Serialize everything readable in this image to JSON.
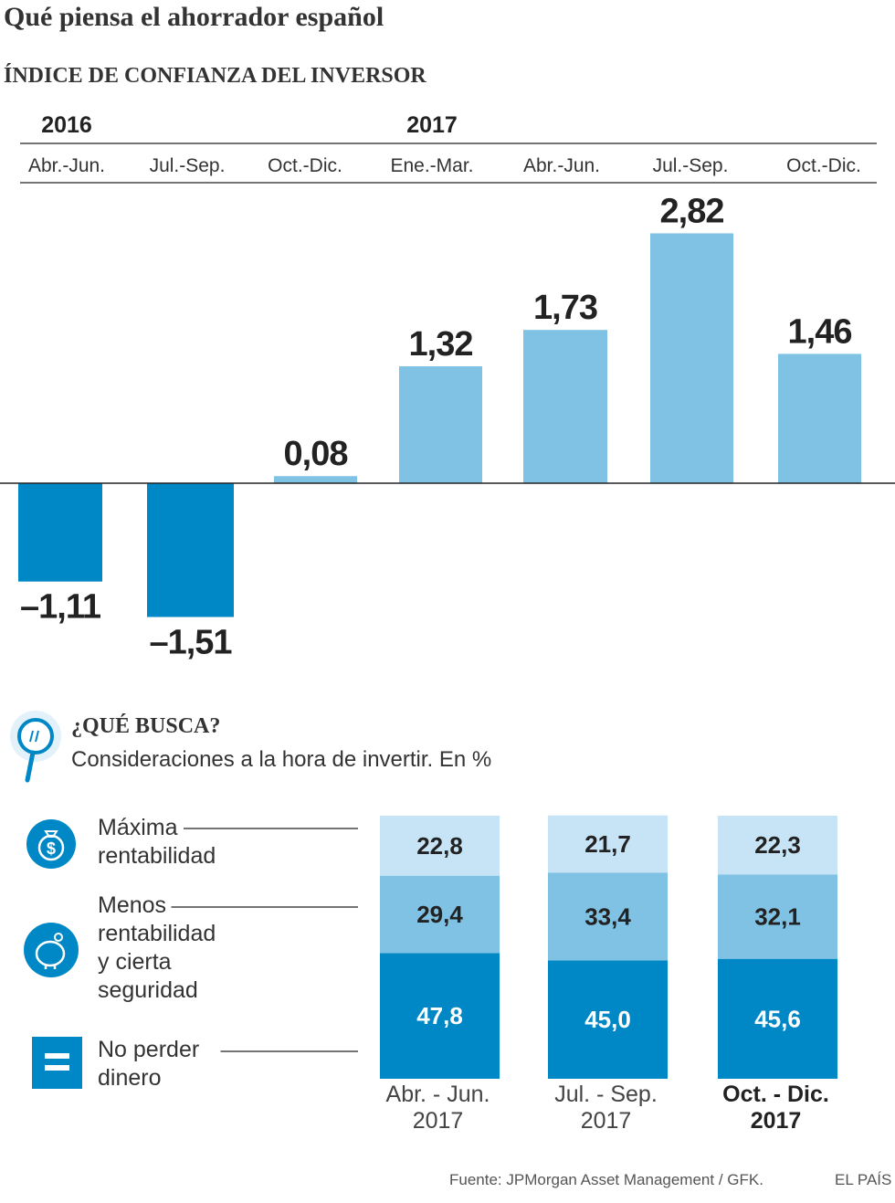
{
  "title": "Qué piensa el ahorrador español",
  "brand": "EL PAÍS",
  "source": "Fuente: JPMorgan Asset Management / GFK.",
  "colors": {
    "positive": "#80c2e4",
    "negative": "#0088c6",
    "light": "#c6e4f5",
    "mid": "#80c2e4",
    "dark": "#0088c6",
    "text": "#222222"
  },
  "chart_data": [
    {
      "type": "bar",
      "title": "ÍNDICE DE CONFIANZA DEL INVERSOR",
      "year_labels": [
        {
          "label": "2016",
          "category_index": 0
        },
        {
          "label": "2017",
          "category_index": 3
        }
      ],
      "categories": [
        "Abr.-Jun.",
        "Jul.-Sep.",
        "Oct.-Dic.",
        "Ene.-Mar.",
        "Abr.-Jun.",
        "Jul.-Sep.",
        "Oct.-Dic."
      ],
      "values": [
        -1.11,
        -1.51,
        0.08,
        1.32,
        1.73,
        2.82,
        1.46
      ],
      "value_labels": [
        "–1,11",
        "–1,51",
        "0,08",
        "1,32",
        "1,73",
        "2,82",
        "1,46"
      ],
      "ylim": [
        -2.0,
        3.3
      ],
      "grid": false
    },
    {
      "type": "bar",
      "stacked": true,
      "title": "¿QUÉ BUSCA?",
      "subtitle": "Consideraciones a la hora de invertir. En %",
      "icon": "magnifier-icon",
      "categories": [
        {
          "line1": "Abr. - Jun.",
          "line2": "2017",
          "bold": false
        },
        {
          "line1": "Jul. - Sep.",
          "line2": "2017",
          "bold": false
        },
        {
          "line1": "Oct. - Dic.",
          "line2": "2017",
          "bold": true
        }
      ],
      "series": [
        {
          "name": "No perder dinero",
          "name_lines": [
            "No perder",
            "dinero"
          ],
          "icon": "equals-icon",
          "values": [
            47.8,
            45.0,
            45.6
          ],
          "labels": [
            "47,8",
            "45,0",
            "45,6"
          ]
        },
        {
          "name": "Menos rentabilidad y cierta seguridad",
          "name_lines": [
            "Menos",
            "rentabilidad",
            "y cierta",
            "seguridad"
          ],
          "icon": "piggy-bank-icon",
          "values": [
            29.4,
            33.4,
            32.1
          ],
          "labels": [
            "29,4",
            "33,4",
            "32,1"
          ]
        },
        {
          "name": "Máxima rentabilidad",
          "name_lines": [
            "Máxima",
            "rentabilidad"
          ],
          "icon": "money-bag-icon",
          "values": [
            22.8,
            21.7,
            22.3
          ],
          "labels": [
            "22,8",
            "21,7",
            "22,3"
          ]
        }
      ],
      "ylim": [
        0,
        100
      ]
    }
  ]
}
